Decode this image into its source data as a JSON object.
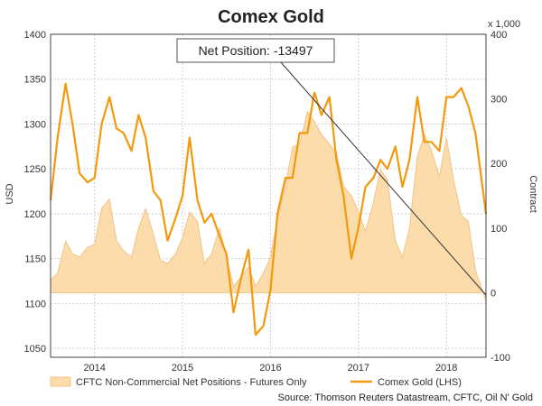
{
  "chart_data": {
    "type": "line",
    "title": "Comex Gold",
    "left_axis": {
      "label": "USD",
      "ylim": [
        1040,
        1400
      ],
      "ticks": [
        1050,
        1100,
        1150,
        1200,
        1250,
        1300,
        1350,
        1400
      ]
    },
    "right_axis": {
      "label": "Contract",
      "unit_note": "x 1,000",
      "ylim": [
        -100,
        400
      ],
      "ticks": [
        -100,
        0,
        100,
        200,
        300,
        400
      ]
    },
    "x_axis": {
      "range": [
        2013.5,
        2018.45
      ],
      "tick_labels": [
        "2014",
        "2015",
        "2016",
        "2017",
        "2018"
      ],
      "tick_values": [
        2014.0,
        2015.0,
        2016.0,
        2017.0,
        2018.0
      ]
    },
    "annotation": "Net Position: -13497",
    "source": "Source: Thomson Reuters Datastream, CFTC, Oil N' Gold",
    "legend_position": "bottom",
    "grid": true,
    "colors": {
      "gold_line": "#f29a0c",
      "net_fill": "#fbdcaa",
      "net_stroke": "#efc48a",
      "grid": "#cfcfcf",
      "annot_line": "#333333"
    },
    "series": [
      {
        "name": "CFTC Non-Commercial Net Positions - Futures Only",
        "axis": "right",
        "style": "area",
        "x": [
          2013.5,
          2013.58,
          2013.67,
          2013.75,
          2013.83,
          2013.92,
          2014.0,
          2014.08,
          2014.17,
          2014.25,
          2014.33,
          2014.42,
          2014.5,
          2014.58,
          2014.67,
          2014.75,
          2014.83,
          2014.92,
          2015.0,
          2015.08,
          2015.17,
          2015.25,
          2015.33,
          2015.42,
          2015.5,
          2015.58,
          2015.67,
          2015.75,
          2015.83,
          2015.92,
          2016.0,
          2016.08,
          2016.17,
          2016.25,
          2016.33,
          2016.42,
          2016.5,
          2016.58,
          2016.67,
          2016.75,
          2016.83,
          2016.92,
          2017.0,
          2017.08,
          2017.17,
          2017.25,
          2017.33,
          2017.42,
          2017.5,
          2017.58,
          2017.67,
          2017.75,
          2017.83,
          2017.92,
          2018.0,
          2018.08,
          2018.17,
          2018.25,
          2018.33,
          2018.45
        ],
        "values": [
          20,
          30,
          80,
          60,
          55,
          70,
          75,
          130,
          145,
          80,
          65,
          55,
          100,
          130,
          90,
          50,
          45,
          60,
          85,
          125,
          110,
          45,
          60,
          100,
          55,
          10,
          25,
          40,
          10,
          30,
          55,
          115,
          165,
          225,
          230,
          280,
          265,
          245,
          230,
          215,
          165,
          150,
          125,
          95,
          140,
          190,
          175,
          80,
          55,
          100,
          210,
          245,
          220,
          180,
          240,
          175,
          120,
          110,
          35,
          -13
        ]
      },
      {
        "name": "Comex Gold (LHS)",
        "axis": "left",
        "style": "line",
        "x": [
          2013.5,
          2013.58,
          2013.67,
          2013.75,
          2013.83,
          2013.92,
          2014.0,
          2014.08,
          2014.17,
          2014.25,
          2014.33,
          2014.42,
          2014.5,
          2014.58,
          2014.67,
          2014.75,
          2014.83,
          2014.92,
          2015.0,
          2015.08,
          2015.17,
          2015.25,
          2015.33,
          2015.42,
          2015.5,
          2015.58,
          2015.67,
          2015.75,
          2015.83,
          2015.92,
          2016.0,
          2016.08,
          2016.17,
          2016.25,
          2016.33,
          2016.42,
          2016.5,
          2016.58,
          2016.67,
          2016.75,
          2016.83,
          2016.92,
          2017.0,
          2017.08,
          2017.17,
          2017.25,
          2017.33,
          2017.42,
          2017.5,
          2017.58,
          2017.67,
          2017.75,
          2017.83,
          2017.92,
          2018.0,
          2018.08,
          2018.17,
          2018.25,
          2018.33,
          2018.45
        ],
        "values": [
          1215,
          1285,
          1345,
          1300,
          1245,
          1235,
          1240,
          1300,
          1330,
          1295,
          1290,
          1270,
          1310,
          1285,
          1225,
          1215,
          1170,
          1195,
          1220,
          1285,
          1215,
          1190,
          1200,
          1175,
          1155,
          1090,
          1130,
          1160,
          1065,
          1075,
          1115,
          1200,
          1240,
          1240,
          1290,
          1290,
          1335,
          1310,
          1330,
          1260,
          1220,
          1150,
          1185,
          1230,
          1240,
          1260,
          1250,
          1275,
          1230,
          1260,
          1330,
          1280,
          1280,
          1270,
          1330,
          1330,
          1340,
          1320,
          1290,
          1200
        ]
      }
    ]
  }
}
